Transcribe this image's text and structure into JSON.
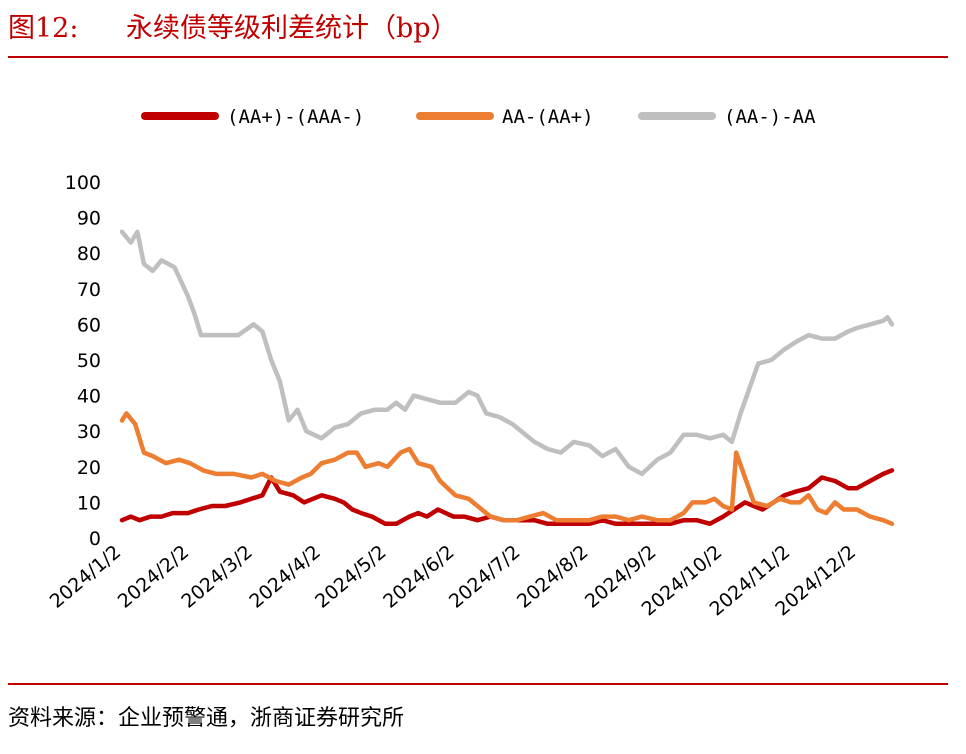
{
  "header": {
    "figure_label": "图12:",
    "title": "永续债等级利差统计（bp）"
  },
  "footer": {
    "source": "资料来源：企业预警通，浙商证券研究所"
  },
  "colors": {
    "series1": "#c00000",
    "series2": "#ed7d31",
    "series3": "#bfbfbf",
    "accent": "#c00000"
  },
  "chart_data": {
    "type": "line",
    "title": "永续债等级利差统计（bp）",
    "xlabel": "",
    "ylabel": "",
    "ylim": [
      0,
      100
    ],
    "yticks": [
      0,
      10,
      20,
      30,
      40,
      50,
      60,
      70,
      80,
      90,
      100
    ],
    "xticks": [
      "2024/1/2",
      "2024/2/2",
      "2024/3/2",
      "2024/4/2",
      "2024/5/2",
      "2024/6/2",
      "2024/7/2",
      "2024/8/2",
      "2024/9/2",
      "2024/10/2",
      "2024/11/2",
      "2024/12/2"
    ],
    "grid": false,
    "legend": "top",
    "series": [
      {
        "name": "(AA+)-(AAA-)",
        "color": "#c00000",
        "points": [
          [
            "2024-01-02",
            5
          ],
          [
            "2024-01-06",
            6
          ],
          [
            "2024-01-10",
            5
          ],
          [
            "2024-01-15",
            6
          ],
          [
            "2024-01-20",
            6
          ],
          [
            "2024-01-25",
            7
          ],
          [
            "2024-02-01",
            7
          ],
          [
            "2024-02-06",
            8
          ],
          [
            "2024-02-12",
            9
          ],
          [
            "2024-02-18",
            9
          ],
          [
            "2024-02-25",
            10
          ],
          [
            "2024-03-01",
            11
          ],
          [
            "2024-03-06",
            12
          ],
          [
            "2024-03-10",
            17
          ],
          [
            "2024-03-14",
            13
          ],
          [
            "2024-03-20",
            12
          ],
          [
            "2024-03-25",
            10
          ],
          [
            "2024-04-02",
            12
          ],
          [
            "2024-04-08",
            11
          ],
          [
            "2024-04-12",
            10
          ],
          [
            "2024-04-16",
            8
          ],
          [
            "2024-04-20",
            7
          ],
          [
            "2024-04-25",
            6
          ],
          [
            "2024-05-01",
            4
          ],
          [
            "2024-05-06",
            4
          ],
          [
            "2024-05-12",
            6
          ],
          [
            "2024-05-16",
            7
          ],
          [
            "2024-05-20",
            6
          ],
          [
            "2024-05-25",
            8
          ],
          [
            "2024-06-01",
            6
          ],
          [
            "2024-06-06",
            6
          ],
          [
            "2024-06-12",
            5
          ],
          [
            "2024-06-18",
            6
          ],
          [
            "2024-06-24",
            5
          ],
          [
            "2024-07-02",
            5
          ],
          [
            "2024-07-08",
            5
          ],
          [
            "2024-07-14",
            4
          ],
          [
            "2024-07-20",
            4
          ],
          [
            "2024-07-26",
            4
          ],
          [
            "2024-08-02",
            4
          ],
          [
            "2024-08-08",
            5
          ],
          [
            "2024-08-14",
            4
          ],
          [
            "2024-08-20",
            4
          ],
          [
            "2024-08-26",
            4
          ],
          [
            "2024-09-02",
            4
          ],
          [
            "2024-09-08",
            4
          ],
          [
            "2024-09-14",
            5
          ],
          [
            "2024-09-20",
            5
          ],
          [
            "2024-09-26",
            4
          ],
          [
            "2024-10-02",
            6
          ],
          [
            "2024-10-07",
            8
          ],
          [
            "2024-10-12",
            10
          ],
          [
            "2024-10-16",
            9
          ],
          [
            "2024-10-20",
            8
          ],
          [
            "2024-10-25",
            10
          ],
          [
            "2024-10-30",
            12
          ],
          [
            "2024-11-04",
            13
          ],
          [
            "2024-11-10",
            14
          ],
          [
            "2024-11-16",
            17
          ],
          [
            "2024-11-22",
            16
          ],
          [
            "2024-11-28",
            14
          ],
          [
            "2024-12-02",
            14
          ],
          [
            "2024-12-08",
            16
          ],
          [
            "2024-12-14",
            18
          ],
          [
            "2024-12-18",
            19
          ]
        ]
      },
      {
        "name": "AA-(AA+)",
        "color": "#ed7d31",
        "points": [
          [
            "2024-01-02",
            33
          ],
          [
            "2024-01-04",
            35
          ],
          [
            "2024-01-08",
            32
          ],
          [
            "2024-01-12",
            24
          ],
          [
            "2024-01-16",
            23
          ],
          [
            "2024-01-22",
            21
          ],
          [
            "2024-01-28",
            22
          ],
          [
            "2024-02-02",
            21
          ],
          [
            "2024-02-08",
            19
          ],
          [
            "2024-02-14",
            18
          ],
          [
            "2024-02-22",
            18
          ],
          [
            "2024-03-01",
            17
          ],
          [
            "2024-03-06",
            18
          ],
          [
            "2024-03-12",
            16
          ],
          [
            "2024-03-18",
            15
          ],
          [
            "2024-03-24",
            17
          ],
          [
            "2024-03-28",
            18
          ],
          [
            "2024-04-02",
            21
          ],
          [
            "2024-04-08",
            22
          ],
          [
            "2024-04-14",
            24
          ],
          [
            "2024-04-18",
            24
          ],
          [
            "2024-04-22",
            20
          ],
          [
            "2024-04-28",
            21
          ],
          [
            "2024-05-02",
            20
          ],
          [
            "2024-05-08",
            24
          ],
          [
            "2024-05-12",
            25
          ],
          [
            "2024-05-16",
            21
          ],
          [
            "2024-05-22",
            20
          ],
          [
            "2024-05-26",
            16
          ],
          [
            "2024-06-02",
            12
          ],
          [
            "2024-06-08",
            11
          ],
          [
            "2024-06-14",
            8
          ],
          [
            "2024-06-18",
            6
          ],
          [
            "2024-06-24",
            5
          ],
          [
            "2024-06-30",
            5
          ],
          [
            "2024-07-06",
            6
          ],
          [
            "2024-07-12",
            7
          ],
          [
            "2024-07-18",
            5
          ],
          [
            "2024-07-24",
            5
          ],
          [
            "2024-08-02",
            5
          ],
          [
            "2024-08-08",
            6
          ],
          [
            "2024-08-14",
            6
          ],
          [
            "2024-08-20",
            5
          ],
          [
            "2024-08-26",
            6
          ],
          [
            "2024-09-02",
            5
          ],
          [
            "2024-09-08",
            5
          ],
          [
            "2024-09-14",
            7
          ],
          [
            "2024-09-18",
            10
          ],
          [
            "2024-09-24",
            10
          ],
          [
            "2024-09-28",
            11
          ],
          [
            "2024-10-02",
            9
          ],
          [
            "2024-10-06",
            8
          ],
          [
            "2024-10-08",
            24
          ],
          [
            "2024-10-12",
            17
          ],
          [
            "2024-10-16",
            10
          ],
          [
            "2024-10-22",
            9
          ],
          [
            "2024-10-28",
            11
          ],
          [
            "2024-11-02",
            10
          ],
          [
            "2024-11-06",
            10
          ],
          [
            "2024-11-10",
            12
          ],
          [
            "2024-11-14",
            8
          ],
          [
            "2024-11-18",
            7
          ],
          [
            "2024-11-22",
            10
          ],
          [
            "2024-11-26",
            8
          ],
          [
            "2024-12-02",
            8
          ],
          [
            "2024-12-08",
            6
          ],
          [
            "2024-12-14",
            5
          ],
          [
            "2024-12-18",
            4
          ]
        ]
      },
      {
        "name": "(AA-)-AA",
        "color": "#bfbfbf",
        "points": [
          [
            "2024-01-02",
            86
          ],
          [
            "2024-01-06",
            83
          ],
          [
            "2024-01-09",
            86
          ],
          [
            "2024-01-12",
            77
          ],
          [
            "2024-01-16",
            75
          ],
          [
            "2024-01-20",
            78
          ],
          [
            "2024-01-26",
            76
          ],
          [
            "2024-02-01",
            68
          ],
          [
            "2024-02-04",
            63
          ],
          [
            "2024-02-07",
            57
          ],
          [
            "2024-02-14",
            57
          ],
          [
            "2024-02-24",
            57
          ],
          [
            "2024-03-02",
            60
          ],
          [
            "2024-03-06",
            58
          ],
          [
            "2024-03-10",
            50
          ],
          [
            "2024-03-14",
            44
          ],
          [
            "2024-03-18",
            33
          ],
          [
            "2024-03-22",
            36
          ],
          [
            "2024-03-26",
            30
          ],
          [
            "2024-04-02",
            28
          ],
          [
            "2024-04-08",
            31
          ],
          [
            "2024-04-14",
            32
          ],
          [
            "2024-04-20",
            35
          ],
          [
            "2024-04-26",
            36
          ],
          [
            "2024-05-02",
            36
          ],
          [
            "2024-05-06",
            38
          ],
          [
            "2024-05-10",
            36
          ],
          [
            "2024-05-14",
            40
          ],
          [
            "2024-05-20",
            39
          ],
          [
            "2024-05-26",
            38
          ],
          [
            "2024-06-02",
            38
          ],
          [
            "2024-06-08",
            41
          ],
          [
            "2024-06-12",
            40
          ],
          [
            "2024-06-16",
            35
          ],
          [
            "2024-06-22",
            34
          ],
          [
            "2024-06-28",
            32
          ],
          [
            "2024-07-02",
            30
          ],
          [
            "2024-07-08",
            27
          ],
          [
            "2024-07-14",
            25
          ],
          [
            "2024-07-20",
            24
          ],
          [
            "2024-07-26",
            27
          ],
          [
            "2024-08-02",
            26
          ],
          [
            "2024-08-08",
            23
          ],
          [
            "2024-08-14",
            25
          ],
          [
            "2024-08-20",
            20
          ],
          [
            "2024-08-26",
            18
          ],
          [
            "2024-09-02",
            22
          ],
          [
            "2024-09-08",
            24
          ],
          [
            "2024-09-14",
            29
          ],
          [
            "2024-09-20",
            29
          ],
          [
            "2024-09-26",
            28
          ],
          [
            "2024-10-02",
            29
          ],
          [
            "2024-10-06",
            27
          ],
          [
            "2024-10-10",
            35
          ],
          [
            "2024-10-14",
            42
          ],
          [
            "2024-10-18",
            49
          ],
          [
            "2024-10-24",
            50
          ],
          [
            "2024-10-30",
            53
          ],
          [
            "2024-11-04",
            55
          ],
          [
            "2024-11-10",
            57
          ],
          [
            "2024-11-16",
            56
          ],
          [
            "2024-11-22",
            56
          ],
          [
            "2024-11-28",
            58
          ],
          [
            "2024-12-02",
            59
          ],
          [
            "2024-12-08",
            60
          ],
          [
            "2024-12-14",
            61
          ],
          [
            "2024-12-16",
            62
          ],
          [
            "2024-12-18",
            60
          ]
        ]
      }
    ]
  }
}
